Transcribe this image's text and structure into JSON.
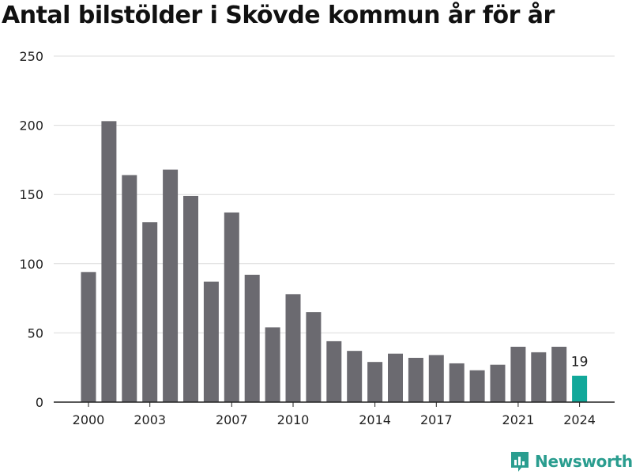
{
  "title": "Antal bilstölder i Skövde kommun år för år",
  "brand": "Newsworthy",
  "colors": {
    "bar": "#6b6a70",
    "highlight": "#12a89a",
    "grid": "#dcdcdc",
    "axis_text": "#222222",
    "brand": "#2a9d8f"
  },
  "chart_data": {
    "type": "bar",
    "title": "Antal bilstölder i Skövde kommun år för år",
    "xlabel": "",
    "ylabel": "",
    "categories": [
      "2000",
      "2001",
      "2002",
      "2003",
      "2004",
      "2005",
      "2006",
      "2007",
      "2008",
      "2009",
      "2010",
      "2011",
      "2012",
      "2013",
      "2014",
      "2015",
      "2016",
      "2017",
      "2018",
      "2019",
      "2020",
      "2021",
      "2022",
      "2023",
      "2024"
    ],
    "values": [
      94,
      203,
      164,
      130,
      168,
      149,
      87,
      137,
      92,
      54,
      78,
      65,
      44,
      37,
      29,
      35,
      32,
      34,
      28,
      23,
      27,
      40,
      36,
      40,
      19
    ],
    "highlight_index": 24,
    "highlight_label": "19",
    "ylim": [
      0,
      250
    ],
    "yticks": [
      0,
      50,
      100,
      150,
      200,
      250
    ],
    "xtick_labels": [
      "2000",
      "2003",
      "2007",
      "2010",
      "2014",
      "2017",
      "2021",
      "2024"
    ],
    "grid": true,
    "legend": "none"
  }
}
